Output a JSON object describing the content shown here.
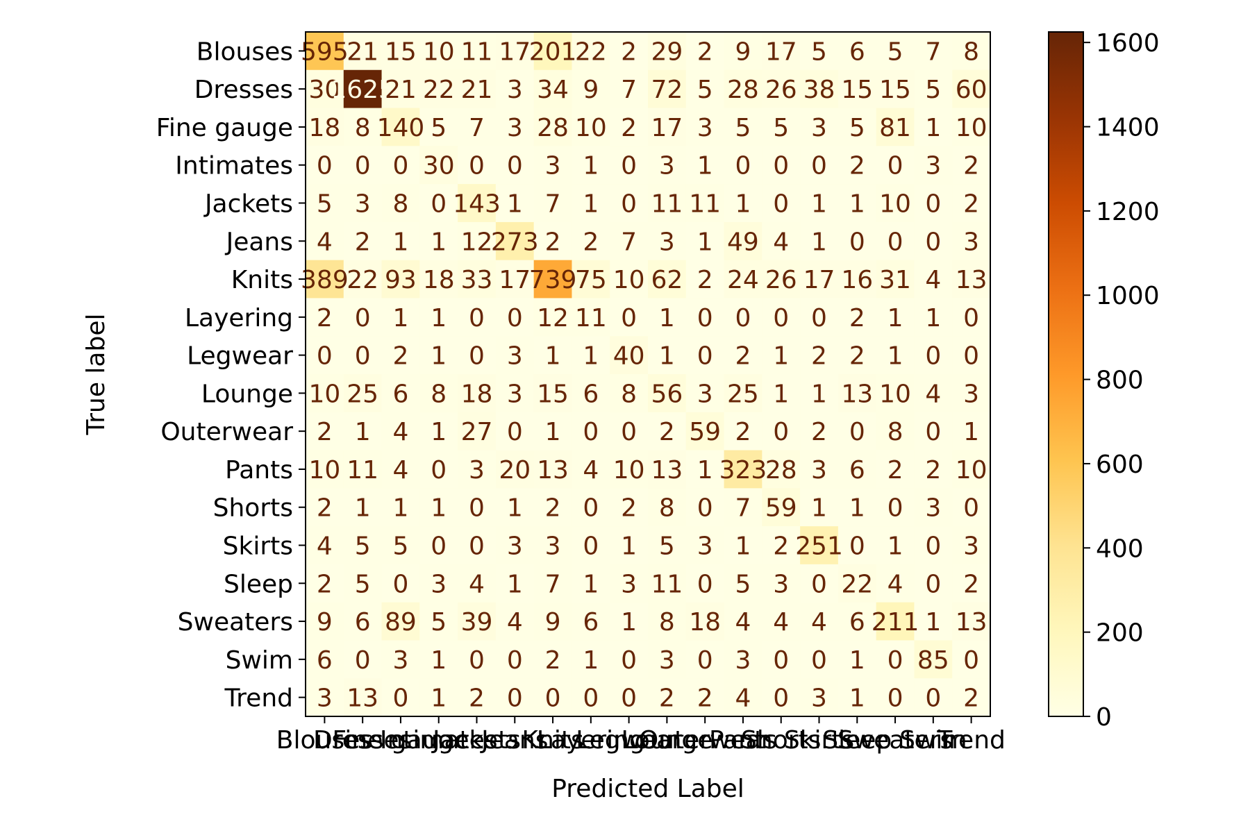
{
  "chart_data": {
    "type": "heatmap",
    "title": "",
    "xlabel": "Predicted Label",
    "ylabel": "True label",
    "row_labels": [
      "Blouses",
      "Dresses",
      "Fine gauge",
      "Intimates",
      "Jackets",
      "Jeans",
      "Knits",
      "Layering",
      "Legwear",
      "Lounge",
      "Outerwear",
      "Pants",
      "Shorts",
      "Skirts",
      "Sleep",
      "Sweaters",
      "Swim",
      "Trend"
    ],
    "col_labels": [
      "Blouses",
      "Dresses",
      "Fine gauge",
      "Intimates",
      "Jackets",
      "Jeans",
      "Knits",
      "Layering",
      "Legwear",
      "Lounge",
      "Outerwear",
      "Pants",
      "Shorts",
      "Skirts",
      "Sleep",
      "Sweaters",
      "Swim",
      "Trend"
    ],
    "matrix": [
      [
        595,
        21,
        15,
        10,
        11,
        17,
        201,
        22,
        2,
        29,
        2,
        9,
        17,
        5,
        6,
        5,
        7,
        8
      ],
      [
        30,
        1625,
        21,
        22,
        21,
        3,
        34,
        9,
        7,
        72,
        5,
        28,
        26,
        38,
        15,
        15,
        5,
        60
      ],
      [
        18,
        8,
        140,
        5,
        7,
        3,
        28,
        10,
        2,
        17,
        3,
        5,
        5,
        3,
        5,
        81,
        1,
        10
      ],
      [
        0,
        0,
        0,
        30,
        0,
        0,
        3,
        1,
        0,
        3,
        1,
        0,
        0,
        0,
        2,
        0,
        3,
        2
      ],
      [
        5,
        3,
        8,
        0,
        143,
        1,
        7,
        1,
        0,
        11,
        11,
        1,
        0,
        1,
        1,
        10,
        0,
        2
      ],
      [
        4,
        2,
        1,
        1,
        12,
        273,
        2,
        2,
        7,
        3,
        1,
        49,
        4,
        1,
        0,
        0,
        0,
        3
      ],
      [
        389,
        22,
        93,
        18,
        33,
        17,
        739,
        75,
        10,
        62,
        2,
        24,
        26,
        17,
        16,
        31,
        4,
        13
      ],
      [
        2,
        0,
        1,
        1,
        0,
        0,
        12,
        11,
        0,
        1,
        0,
        0,
        0,
        0,
        2,
        1,
        1,
        0
      ],
      [
        0,
        0,
        2,
        1,
        0,
        3,
        1,
        1,
        40,
        1,
        0,
        2,
        1,
        2,
        2,
        1,
        0,
        0
      ],
      [
        10,
        25,
        6,
        8,
        18,
        3,
        15,
        6,
        8,
        56,
        3,
        25,
        1,
        1,
        13,
        10,
        4,
        3
      ],
      [
        2,
        1,
        4,
        1,
        27,
        0,
        1,
        0,
        0,
        2,
        59,
        2,
        0,
        2,
        0,
        8,
        0,
        1
      ],
      [
        10,
        11,
        4,
        0,
        3,
        20,
        13,
        4,
        10,
        13,
        1,
        323,
        28,
        3,
        6,
        2,
        2,
        10
      ],
      [
        2,
        1,
        1,
        1,
        0,
        1,
        2,
        0,
        2,
        8,
        0,
        7,
        59,
        1,
        1,
        0,
        3,
        0
      ],
      [
        4,
        5,
        5,
        0,
        0,
        3,
        3,
        0,
        1,
        5,
        3,
        1,
        2,
        251,
        0,
        1,
        0,
        3
      ],
      [
        2,
        5,
        0,
        3,
        4,
        1,
        7,
        1,
        3,
        11,
        0,
        5,
        3,
        0,
        22,
        4,
        0,
        2
      ],
      [
        9,
        6,
        89,
        5,
        39,
        4,
        9,
        6,
        1,
        8,
        18,
        4,
        4,
        4,
        6,
        211,
        1,
        13
      ],
      [
        6,
        0,
        3,
        1,
        0,
        0,
        2,
        1,
        0,
        3,
        0,
        3,
        0,
        0,
        1,
        0,
        85,
        0
      ],
      [
        3,
        13,
        0,
        1,
        2,
        0,
        0,
        0,
        0,
        2,
        2,
        4,
        0,
        3,
        1,
        0,
        0,
        2
      ]
    ],
    "colorbar": {
      "vmin": 0,
      "vmax": 1625,
      "ticks": [
        "0",
        "200",
        "400",
        "600",
        "800",
        "1000",
        "1200",
        "1400",
        "1600"
      ],
      "colormap": "YlOrBr",
      "colors": [
        "#ffffe5",
        "#fff7bc",
        "#fee391",
        "#fec44f",
        "#fe9929",
        "#ec7014",
        "#cc4c02",
        "#993404",
        "#662506"
      ]
    },
    "text_colors": {
      "dark": "#662506",
      "light": "#ffffe5"
    }
  }
}
